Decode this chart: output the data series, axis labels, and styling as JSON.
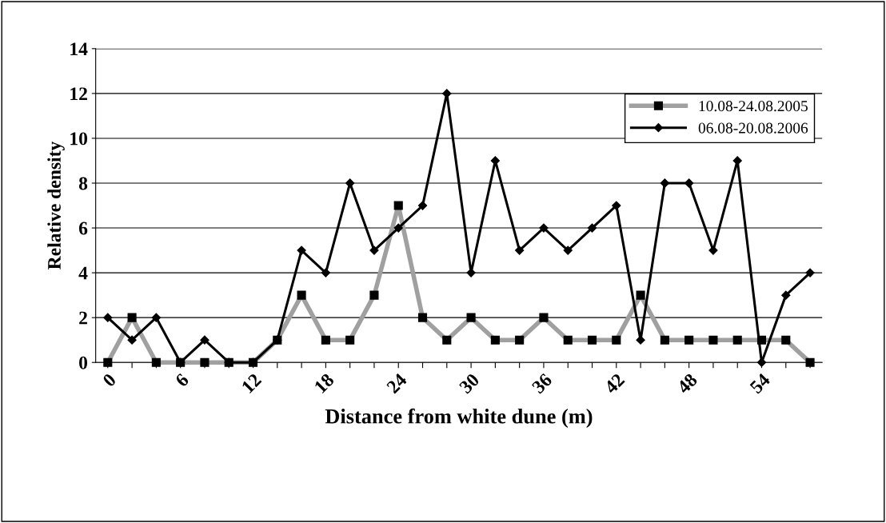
{
  "chart_data": {
    "type": "line",
    "xlabel": "Distance from white dune (m)",
    "ylabel": "Relative density",
    "categories": [
      "0",
      null,
      null,
      "6",
      null,
      null,
      "12",
      null,
      null,
      "18",
      null,
      null,
      "24",
      null,
      null,
      "30",
      null,
      null,
      "36",
      null,
      null,
      "42",
      null,
      null,
      "48",
      null,
      null,
      "54",
      null,
      null
    ],
    "series": [
      {
        "name": "10.08-24.08.2005",
        "color": "#a0a0a0",
        "marker": "square",
        "values": [
          0,
          2,
          0,
          0,
          0,
          0,
          0,
          1,
          3,
          1,
          1,
          3,
          7,
          2,
          1,
          2,
          1,
          1,
          2,
          1,
          1,
          1,
          3,
          1,
          1,
          1,
          1,
          1,
          1,
          0
        ]
      },
      {
        "name": "06.08-20.08.2006",
        "color": "#000000",
        "marker": "diamond",
        "values": [
          2,
          1,
          2,
          0,
          1,
          0,
          0,
          1,
          5,
          4,
          8,
          5,
          6,
          7,
          12,
          4,
          9,
          5,
          6,
          5,
          6,
          7,
          1,
          8,
          8,
          5,
          9,
          0,
          3,
          4
        ]
      }
    ],
    "ylim": [
      0,
      14
    ],
    "yticks": [
      0,
      2,
      4,
      6,
      8,
      10,
      12,
      14
    ],
    "grid": "y",
    "legend": "top right",
    "line_style": "solid"
  }
}
